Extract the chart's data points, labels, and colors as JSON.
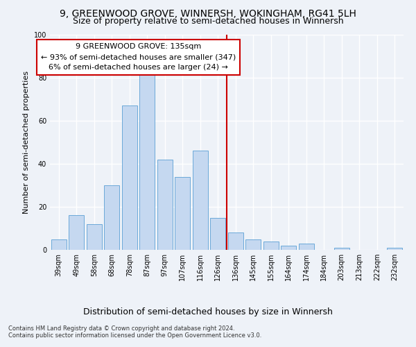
{
  "title": "9, GREENWOOD GROVE, WINNERSH, WOKINGHAM, RG41 5LH",
  "subtitle": "Size of property relative to semi-detached houses in Winnersh",
  "xlabel": "Distribution of semi-detached houses by size in Winnersh",
  "ylabel": "Number of semi-detached properties",
  "categories": [
    "39sqm",
    "49sqm",
    "58sqm",
    "68sqm",
    "78sqm",
    "87sqm",
    "97sqm",
    "107sqm",
    "116sqm",
    "126sqm",
    "136sqm",
    "145sqm",
    "155sqm",
    "164sqm",
    "174sqm",
    "184sqm",
    "203sqm",
    "213sqm",
    "222sqm",
    "232sqm"
  ],
  "values": [
    5,
    16,
    12,
    30,
    67,
    82,
    42,
    34,
    46,
    15,
    8,
    5,
    4,
    2,
    3,
    0,
    1,
    0,
    0,
    1
  ],
  "bar_color": "#c5d8f0",
  "bar_edge_color": "#5a9fd4",
  "vline_index": 10,
  "annotation_title": "9 GREENWOOD GROVE: 135sqm",
  "annotation_line1": "← 93% of semi-detached houses are smaller (347)",
  "annotation_line2": "6% of semi-detached houses are larger (24) →",
  "annotation_box_color": "#ffffff",
  "annotation_box_edge_color": "#cc0000",
  "vline_color": "#cc0000",
  "footer1": "Contains HM Land Registry data © Crown copyright and database right 2024.",
  "footer2": "Contains public sector information licensed under the Open Government Licence v3.0.",
  "ylim": [
    0,
    100
  ],
  "bg_color": "#eef2f8",
  "plot_bg_color": "#eef2f8",
  "grid_color": "#ffffff",
  "title_fontsize": 10,
  "subtitle_fontsize": 9,
  "ylabel_fontsize": 8,
  "xlabel_fontsize": 9,
  "tick_fontsize": 7,
  "ann_fontsize": 8
}
